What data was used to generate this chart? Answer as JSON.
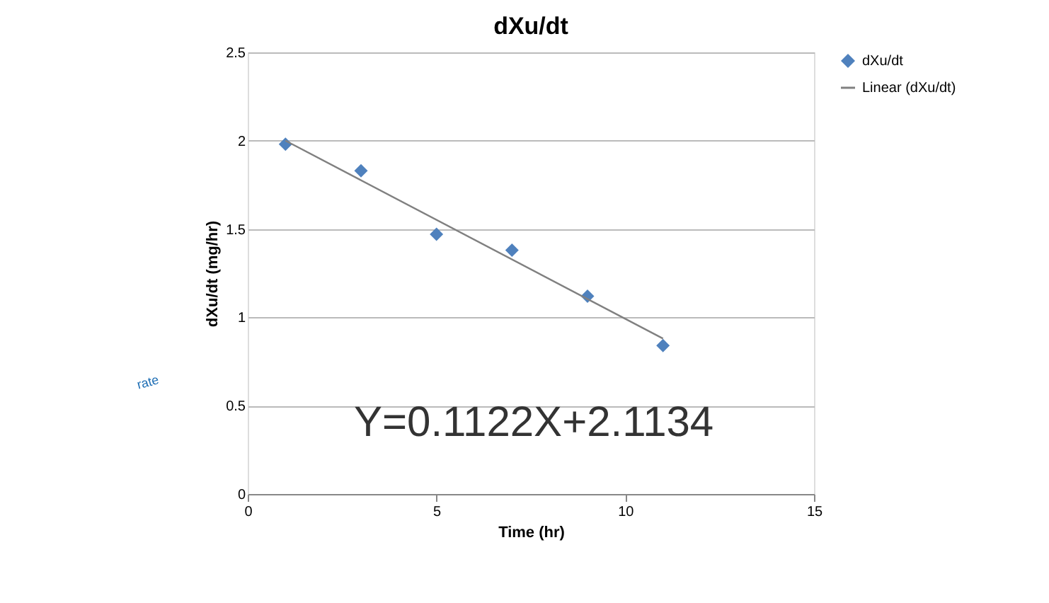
{
  "chart_data": {
    "type": "scatter",
    "title": "dXu/dt",
    "xlabel": "Time (hr)",
    "ylabel": "dXu/dt (mg/hr)",
    "series": [
      {
        "name": "dXu/dt",
        "color": "#4f81bd",
        "marker": "diamond",
        "x": [
          1,
          3,
          5,
          7,
          9,
          11
        ],
        "values": [
          1.98,
          1.83,
          1.47,
          1.38,
          1.12,
          0.84
        ]
      },
      {
        "name": "Linear (dXu/dt)",
        "type": "line",
        "color": "#808080",
        "x": [
          1,
          11
        ],
        "values": [
          2.0,
          0.88
        ]
      }
    ],
    "xlim": [
      0,
      15
    ],
    "xticks": [
      0,
      5,
      10,
      15
    ],
    "ylim": [
      0,
      2.5
    ],
    "yticks": [
      0,
      0.5,
      1,
      1.5,
      2,
      2.5
    ],
    "grid": "y",
    "legend": "right",
    "annotations": [
      "Y=0.1122X+2.1134",
      "rate"
    ]
  }
}
